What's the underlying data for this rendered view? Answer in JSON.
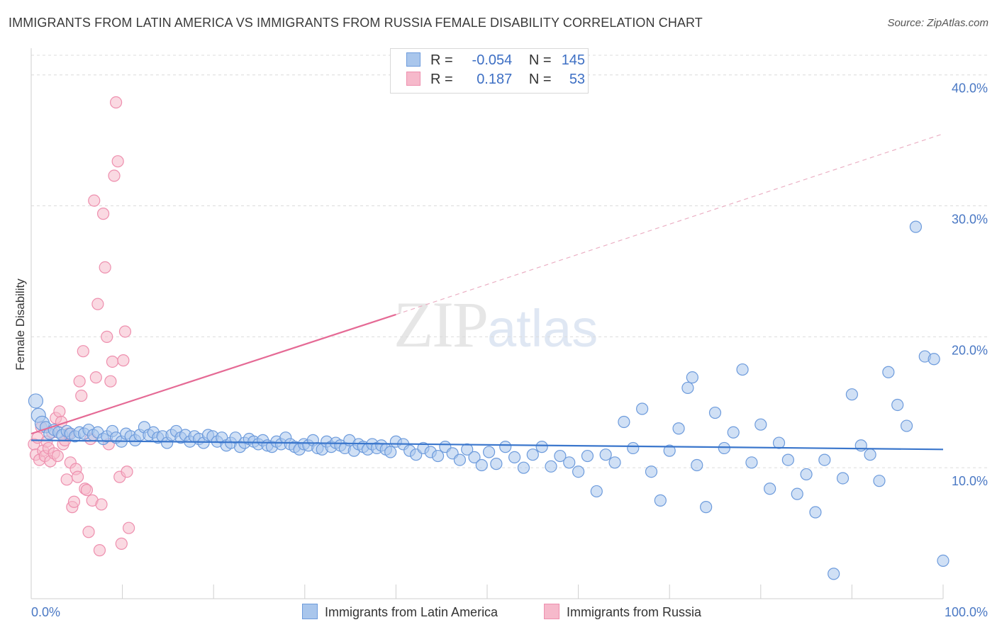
{
  "title": "IMMIGRANTS FROM LATIN AMERICA VS IMMIGRANTS FROM RUSSIA FEMALE DISABILITY CORRELATION CHART",
  "source": "Source: ZipAtlas.com",
  "watermark": {
    "zip": "ZIP",
    "atlas": "atlas"
  },
  "legend": {
    "rows": [
      {
        "r_label": "R =",
        "r_value": "-0.054",
        "n_label": "N =",
        "n_value": "145"
      },
      {
        "r_label": "R =",
        "r_value": "0.187",
        "n_label": "N =",
        "n_value": "53"
      }
    ]
  },
  "bottom_legend": [
    "Immigrants from Latin America",
    "Immigrants from Russia"
  ],
  "colors": {
    "blue_fill": "#a9c6ec",
    "blue_stroke": "#6d9bdc",
    "blue_line": "#3a76cc",
    "pink_fill": "#f6b9cb",
    "pink_stroke": "#ee8fae",
    "pink_line": "#e56a95",
    "grid": "#dcdcdc",
    "tick_text": "#4a78c4"
  },
  "chart_data": {
    "type": "scatter",
    "title": "IMMIGRANTS FROM LATIN AMERICA VS IMMIGRANTS FROM RUSSIA FEMALE DISABILITY CORRELATION CHART",
    "xlabel": "",
    "ylabel": "Female Disability",
    "xlim": [
      0,
      100
    ],
    "ylim": [
      0,
      41.5
    ],
    "y_ticks": [
      10,
      20,
      30,
      40
    ],
    "y_tick_labels": [
      "10.0%",
      "20.0%",
      "30.0%",
      "40.0%"
    ],
    "x_tick_labels": [
      "0.0%",
      "100.0%"
    ],
    "grid": true,
    "legend_position": "top-center",
    "series": [
      {
        "name": "Immigrants from Latin America",
        "color": "#a9c6ec",
        "trend": {
          "x": [
            0,
            100
          ],
          "y": [
            12.1,
            11.4
          ],
          "style": "solid"
        },
        "points": [
          [
            0.5,
            15.1
          ],
          [
            0.8,
            14.0
          ],
          [
            1.2,
            13.4
          ],
          [
            1.6,
            13.1
          ],
          [
            2.0,
            12.6
          ],
          [
            2.5,
            12.9
          ],
          [
            3.0,
            12.7
          ],
          [
            3.4,
            12.5
          ],
          [
            3.9,
            12.8
          ],
          [
            4.3,
            12.6
          ],
          [
            4.8,
            12.4
          ],
          [
            5.3,
            12.7
          ],
          [
            5.8,
            12.6
          ],
          [
            6.3,
            12.9
          ],
          [
            6.8,
            12.5
          ],
          [
            7.3,
            12.7
          ],
          [
            7.9,
            12.2
          ],
          [
            8.3,
            12.4
          ],
          [
            8.9,
            12.8
          ],
          [
            9.3,
            12.3
          ],
          [
            9.9,
            12.0
          ],
          [
            10.4,
            12.6
          ],
          [
            10.9,
            12.4
          ],
          [
            11.4,
            12.1
          ],
          [
            11.9,
            12.5
          ],
          [
            12.4,
            13.1
          ],
          [
            12.9,
            12.5
          ],
          [
            13.4,
            12.7
          ],
          [
            13.9,
            12.3
          ],
          [
            14.4,
            12.4
          ],
          [
            14.9,
            11.9
          ],
          [
            15.4,
            12.5
          ],
          [
            15.9,
            12.8
          ],
          [
            16.4,
            12.3
          ],
          [
            16.9,
            12.5
          ],
          [
            17.4,
            12.0
          ],
          [
            17.9,
            12.4
          ],
          [
            18.4,
            12.2
          ],
          [
            18.9,
            11.9
          ],
          [
            19.4,
            12.5
          ],
          [
            19.9,
            12.4
          ],
          [
            20.4,
            12.0
          ],
          [
            20.9,
            12.3
          ],
          [
            21.4,
            11.7
          ],
          [
            21.9,
            11.9
          ],
          [
            22.4,
            12.3
          ],
          [
            22.9,
            11.6
          ],
          [
            23.4,
            11.9
          ],
          [
            23.9,
            12.2
          ],
          [
            24.4,
            12.0
          ],
          [
            24.9,
            11.8
          ],
          [
            25.4,
            12.1
          ],
          [
            25.9,
            11.7
          ],
          [
            26.4,
            11.6
          ],
          [
            26.9,
            12.0
          ],
          [
            27.4,
            11.8
          ],
          [
            27.9,
            12.3
          ],
          [
            28.4,
            11.8
          ],
          [
            28.9,
            11.6
          ],
          [
            29.4,
            11.4
          ],
          [
            29.9,
            11.8
          ],
          [
            30.4,
            11.7
          ],
          [
            30.9,
            12.1
          ],
          [
            31.4,
            11.5
          ],
          [
            31.9,
            11.4
          ],
          [
            32.4,
            12.0
          ],
          [
            32.9,
            11.6
          ],
          [
            33.4,
            11.9
          ],
          [
            33.9,
            11.7
          ],
          [
            34.4,
            11.5
          ],
          [
            34.9,
            12.1
          ],
          [
            35.4,
            11.3
          ],
          [
            35.9,
            11.8
          ],
          [
            36.4,
            11.6
          ],
          [
            36.9,
            11.4
          ],
          [
            37.4,
            11.8
          ],
          [
            37.9,
            11.5
          ],
          [
            38.4,
            11.7
          ],
          [
            38.9,
            11.4
          ],
          [
            39.4,
            11.2
          ],
          [
            40.0,
            12.0
          ],
          [
            40.8,
            11.8
          ],
          [
            41.5,
            11.3
          ],
          [
            42.2,
            11.0
          ],
          [
            43.0,
            11.5
          ],
          [
            43.8,
            11.2
          ],
          [
            44.6,
            10.9
          ],
          [
            45.4,
            11.6
          ],
          [
            46.2,
            11.1
          ],
          [
            47.0,
            10.6
          ],
          [
            47.8,
            11.4
          ],
          [
            48.6,
            10.8
          ],
          [
            49.4,
            10.2
          ],
          [
            50.2,
            11.2
          ],
          [
            51.0,
            10.3
          ],
          [
            52.0,
            11.6
          ],
          [
            53.0,
            10.8
          ],
          [
            54.0,
            10.0
          ],
          [
            55.0,
            11.0
          ],
          [
            56.0,
            11.6
          ],
          [
            57.0,
            10.1
          ],
          [
            58.0,
            10.9
          ],
          [
            59.0,
            10.4
          ],
          [
            60.0,
            9.7
          ],
          [
            61.0,
            10.9
          ],
          [
            62.0,
            8.2
          ],
          [
            63.0,
            11.0
          ],
          [
            64.0,
            10.4
          ],
          [
            65.0,
            13.5
          ],
          [
            66.0,
            11.5
          ],
          [
            67.0,
            14.5
          ],
          [
            68.0,
            9.7
          ],
          [
            69.0,
            7.5
          ],
          [
            70.0,
            11.3
          ],
          [
            71.0,
            13.0
          ],
          [
            72.0,
            16.1
          ],
          [
            72.5,
            16.9
          ],
          [
            73.0,
            10.2
          ],
          [
            74.0,
            7.0
          ],
          [
            75.0,
            14.2
          ],
          [
            76.0,
            11.5
          ],
          [
            77.0,
            12.7
          ],
          [
            78.0,
            17.5
          ],
          [
            79.0,
            10.4
          ],
          [
            80.0,
            13.3
          ],
          [
            81.0,
            8.4
          ],
          [
            82.0,
            11.9
          ],
          [
            83.0,
            10.6
          ],
          [
            84.0,
            8.0
          ],
          [
            85.0,
            9.5
          ],
          [
            86.0,
            6.6
          ],
          [
            87.0,
            10.6
          ],
          [
            88.0,
            1.9
          ],
          [
            89.0,
            9.2
          ],
          [
            90.0,
            15.6
          ],
          [
            91.0,
            11.7
          ],
          [
            92.0,
            11.0
          ],
          [
            93.0,
            9.0
          ],
          [
            94.0,
            17.3
          ],
          [
            95.0,
            14.8
          ],
          [
            96.0,
            13.2
          ],
          [
            97.0,
            28.4
          ],
          [
            98.0,
            18.5
          ],
          [
            99.0,
            18.3
          ],
          [
            100.0,
            2.9
          ]
        ]
      },
      {
        "name": "Immigrants from Russia",
        "color": "#f6b9cb",
        "trend": {
          "x": [
            0,
            40
          ],
          "y": [
            12.6,
            21.7
          ],
          "style": "solid",
          "extended_to": [
            100,
            35.5
          ],
          "extended_style": "dashed"
        },
        "points": [
          [
            0.3,
            11.8
          ],
          [
            0.5,
            11.0
          ],
          [
            0.7,
            12.3
          ],
          [
            0.9,
            10.6
          ],
          [
            1.1,
            13.1
          ],
          [
            1.3,
            11.3
          ],
          [
            1.5,
            10.9
          ],
          [
            1.7,
            12.0
          ],
          [
            1.9,
            11.5
          ],
          [
            2.1,
            10.5
          ],
          [
            2.3,
            12.7
          ],
          [
            2.5,
            11.1
          ],
          [
            2.7,
            13.8
          ],
          [
            2.9,
            10.9
          ],
          [
            3.1,
            14.3
          ],
          [
            3.3,
            13.5
          ],
          [
            3.5,
            11.8
          ],
          [
            3.7,
            12.1
          ],
          [
            3.9,
            9.1
          ],
          [
            4.1,
            12.6
          ],
          [
            4.3,
            10.4
          ],
          [
            4.5,
            7.0
          ],
          [
            4.7,
            7.4
          ],
          [
            4.9,
            9.9
          ],
          [
            5.1,
            9.3
          ],
          [
            5.3,
            16.6
          ],
          [
            5.5,
            15.5
          ],
          [
            5.7,
            18.9
          ],
          [
            5.9,
            8.4
          ],
          [
            6.1,
            8.3
          ],
          [
            6.3,
            5.1
          ],
          [
            6.5,
            12.2
          ],
          [
            6.7,
            7.5
          ],
          [
            6.9,
            30.4
          ],
          [
            7.1,
            16.9
          ],
          [
            7.3,
            22.5
          ],
          [
            7.5,
            3.7
          ],
          [
            7.7,
            7.2
          ],
          [
            7.9,
            29.4
          ],
          [
            8.1,
            25.3
          ],
          [
            8.3,
            20.0
          ],
          [
            8.5,
            11.8
          ],
          [
            8.7,
            16.6
          ],
          [
            8.9,
            18.1
          ],
          [
            9.1,
            32.3
          ],
          [
            9.3,
            37.9
          ],
          [
            9.5,
            33.4
          ],
          [
            9.7,
            9.3
          ],
          [
            9.9,
            4.2
          ],
          [
            10.1,
            18.2
          ],
          [
            10.3,
            20.4
          ],
          [
            10.5,
            9.7
          ],
          [
            10.7,
            5.4
          ]
        ]
      }
    ]
  }
}
